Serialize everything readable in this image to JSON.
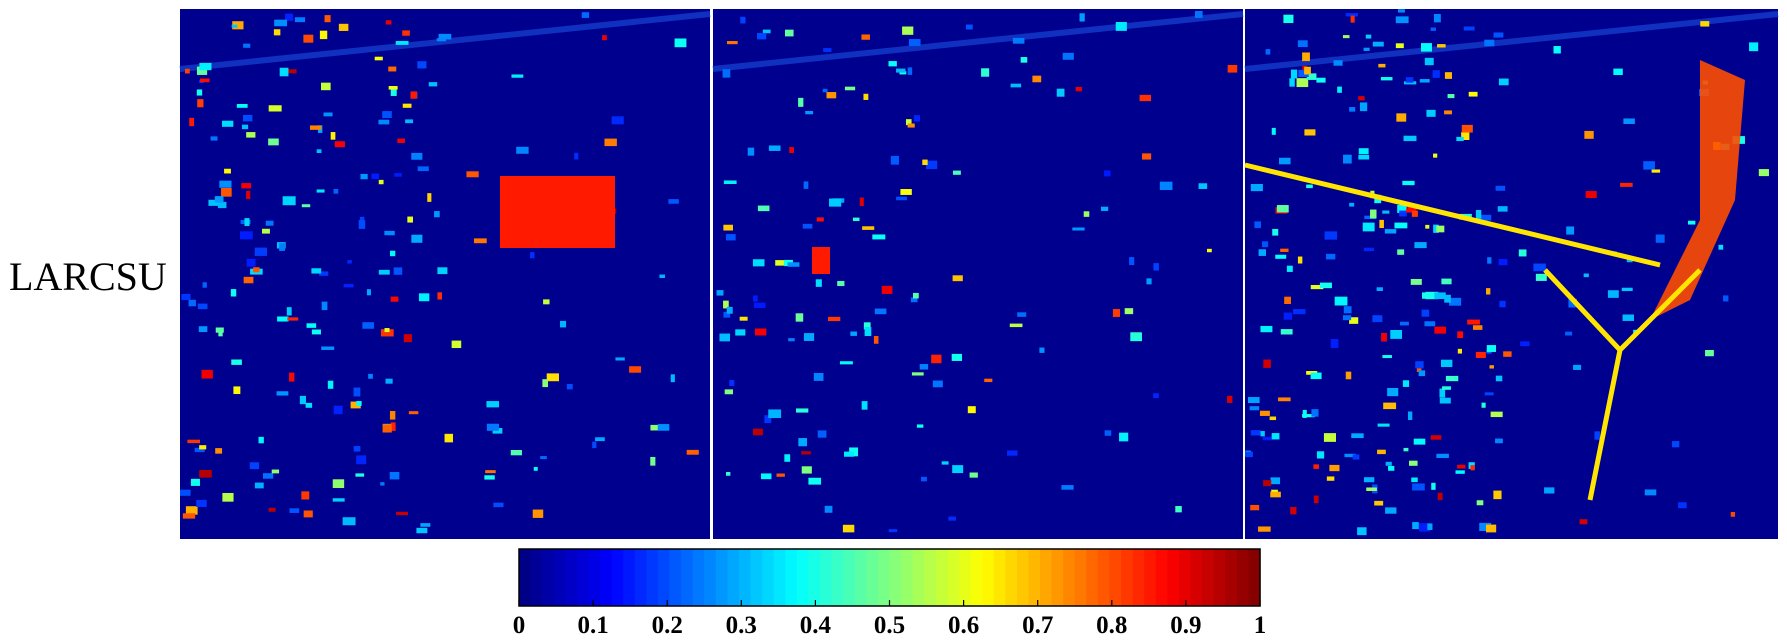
{
  "row_label": "LARCSU",
  "colorbar": {
    "colormap": "jet",
    "range": [
      0,
      1
    ],
    "ticks": [
      0,
      0.1,
      0.2,
      0.3,
      0.4,
      0.5,
      0.6,
      0.7,
      0.8,
      0.9,
      1
    ]
  }
}
